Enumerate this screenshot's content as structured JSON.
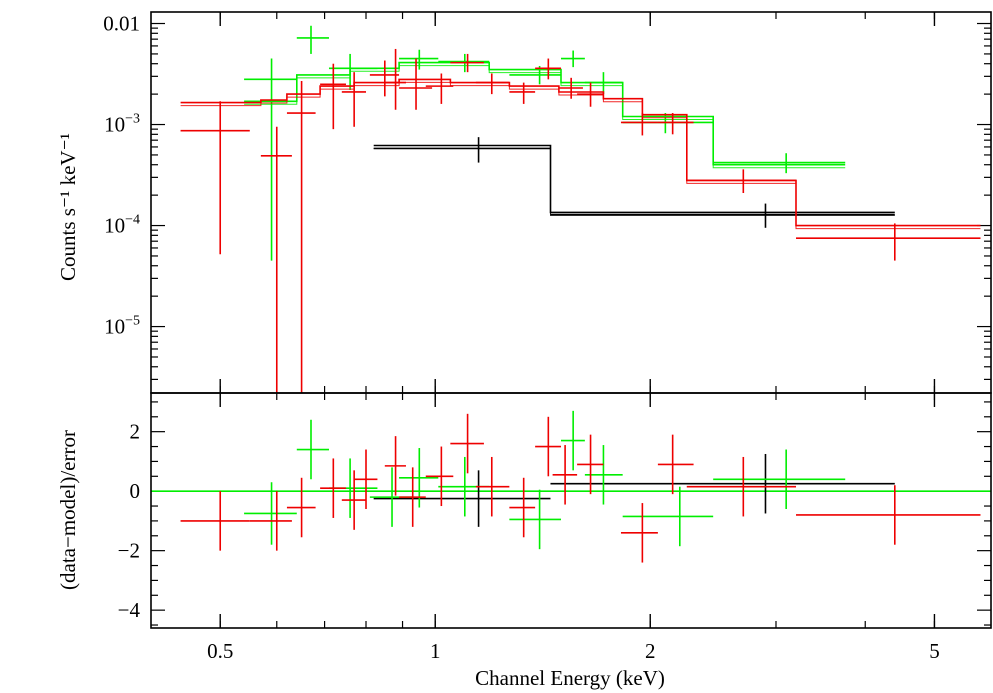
{
  "chart_data": [
    {
      "panel": "spectrum",
      "type": "scatter",
      "ylabel": "Counts s⁻¹ keV⁻¹",
      "xscale": "log",
      "yscale": "log",
      "xlim": [
        0.4,
        6.0
      ],
      "ylim": [
        2.2e-06,
        0.013
      ],
      "x_ticks": [
        {
          "value": 0.5,
          "label": "0.5"
        },
        {
          "value": 1,
          "label": "1"
        },
        {
          "value": 2,
          "label": "2"
        },
        {
          "value": 5,
          "label": "5"
        }
      ],
      "y_ticks": [
        {
          "value": 0.01,
          "label": "0.01",
          "sup": ""
        },
        {
          "value": 0.001,
          "label": "10",
          "sup": "−3"
        },
        {
          "value": 0.0001,
          "label": "10",
          "sup": "−4"
        },
        {
          "value": 1e-05,
          "label": "10",
          "sup": "−5"
        }
      ],
      "series": [
        {
          "name": "black",
          "color": "#000000",
          "points": [
            {
              "x": 1.15,
              "xlo": 0.82,
              "xhi": 1.45,
              "y": 0.00058,
              "ylo": 0.00042,
              "yhi": 0.00075
            },
            {
              "x": 2.9,
              "xlo": 1.45,
              "xhi": 4.4,
              "y": 0.000128,
              "ylo": 9.5e-05,
              "yhi": 0.000165
            }
          ],
          "model": [
            {
              "xlo": 0.82,
              "xhi": 1.45,
              "y": 0.00062
            },
            {
              "xlo": 1.45,
              "xhi": 4.4,
              "y": 0.000135
            }
          ]
        },
        {
          "name": "green",
          "color": "#00ee00",
          "points": [
            {
              "x": 0.59,
              "xlo": 0.54,
              "xhi": 0.64,
              "y": 0.0028,
              "ylo": 4.5e-05,
              "yhi": 0.0045
            },
            {
              "x": 0.67,
              "xlo": 0.64,
              "xhi": 0.71,
              "y": 0.0072,
              "ylo": 0.005,
              "yhi": 0.0095
            },
            {
              "x": 0.76,
              "xlo": 0.71,
              "xhi": 0.83,
              "y": 0.0036,
              "ylo": 0.0022,
              "yhi": 0.005
            },
            {
              "x": 0.95,
              "xlo": 0.89,
              "xhi": 1.01,
              "y": 0.0045,
              "ylo": 0.0035,
              "yhi": 0.0055
            },
            {
              "x": 1.1,
              "xlo": 1.01,
              "xhi": 1.19,
              "y": 0.0042,
              "ylo": 0.0033,
              "yhi": 0.005
            },
            {
              "x": 1.4,
              "xlo": 1.27,
              "xhi": 1.5,
              "y": 0.0031,
              "ylo": 0.0025,
              "yhi": 0.0038
            },
            {
              "x": 1.56,
              "xlo": 1.5,
              "xhi": 1.62,
              "y": 0.0045,
              "ylo": 0.0037,
              "yhi": 0.0054
            },
            {
              "x": 1.72,
              "xlo": 1.62,
              "xhi": 1.83,
              "y": 0.0026,
              "ylo": 0.002,
              "yhi": 0.0033
            },
            {
              "x": 2.1,
              "xlo": 1.83,
              "xhi": 2.45,
              "y": 0.00105,
              "ylo": 0.00082,
              "yhi": 0.0013
            },
            {
              "x": 3.1,
              "xlo": 2.45,
              "xhi": 3.75,
              "y": 0.00042,
              "ylo": 0.00033,
              "yhi": 0.00052
            }
          ],
          "model": [
            {
              "xlo": 0.54,
              "xhi": 0.64,
              "y": 0.0017
            },
            {
              "xlo": 0.64,
              "xhi": 0.76,
              "y": 0.0031
            },
            {
              "xlo": 0.76,
              "xhi": 0.89,
              "y": 0.0036
            },
            {
              "xlo": 0.89,
              "xhi": 1.19,
              "y": 0.0041
            },
            {
              "xlo": 1.19,
              "xhi": 1.5,
              "y": 0.0035
            },
            {
              "xlo": 1.5,
              "xhi": 1.83,
              "y": 0.0026
            },
            {
              "xlo": 1.83,
              "xhi": 2.45,
              "y": 0.0012
            },
            {
              "xlo": 2.45,
              "xhi": 3.75,
              "y": 0.0004
            }
          ]
        },
        {
          "name": "red",
          "color": "#ee0000",
          "points": [
            {
              "x": 0.5,
              "xlo": 0.44,
              "xhi": 0.55,
              "y": 0.00087,
              "ylo": 5.2e-05,
              "yhi": 0.0017
            },
            {
              "x": 0.6,
              "xlo": 0.57,
              "xhi": 0.63,
              "y": 0.00049,
              "ylo": 2.2e-06,
              "yhi": 0.00095
            },
            {
              "x": 0.65,
              "xlo": 0.62,
              "xhi": 0.68,
              "y": 0.0013,
              "ylo": 2.2e-06,
              "yhi": 0.0027
            },
            {
              "x": 0.72,
              "xlo": 0.69,
              "xhi": 0.75,
              "y": 0.0025,
              "ylo": 0.0009,
              "yhi": 0.004
            },
            {
              "x": 0.77,
              "xlo": 0.74,
              "xhi": 0.8,
              "y": 0.0021,
              "ylo": 0.00095,
              "yhi": 0.0033
            },
            {
              "x": 0.85,
              "xlo": 0.81,
              "xhi": 0.89,
              "y": 0.0031,
              "ylo": 0.0019,
              "yhi": 0.0043
            },
            {
              "x": 0.88,
              "xlo": 0.85,
              "xhi": 0.91,
              "y": 0.0026,
              "ylo": 0.0014,
              "yhi": 0.0056
            },
            {
              "x": 0.94,
              "xlo": 0.89,
              "xhi": 0.99,
              "y": 0.0023,
              "ylo": 0.0014,
              "yhi": 0.0045
            },
            {
              "x": 1.02,
              "xlo": 0.97,
              "xhi": 1.06,
              "y": 0.0024,
              "ylo": 0.0016,
              "yhi": 0.0032
            },
            {
              "x": 1.11,
              "xlo": 1.05,
              "xhi": 1.17,
              "y": 0.0041,
              "ylo": 0.0033,
              "yhi": 0.005
            },
            {
              "x": 1.2,
              "xlo": 1.14,
              "xhi": 1.27,
              "y": 0.0026,
              "ylo": 0.002,
              "yhi": 0.0032
            },
            {
              "x": 1.33,
              "xlo": 1.27,
              "xhi": 1.38,
              "y": 0.0021,
              "ylo": 0.0016,
              "yhi": 0.0026
            },
            {
              "x": 1.44,
              "xlo": 1.38,
              "xhi": 1.5,
              "y": 0.0036,
              "ylo": 0.0028,
              "yhi": 0.0045
            },
            {
              "x": 1.55,
              "xlo": 1.49,
              "xhi": 1.61,
              "y": 0.0023,
              "ylo": 0.0018,
              "yhi": 0.0029
            },
            {
              "x": 1.65,
              "xlo": 1.58,
              "xhi": 1.72,
              "y": 0.002,
              "ylo": 0.0015,
              "yhi": 0.0026
            },
            {
              "x": 1.95,
              "xlo": 1.82,
              "xhi": 2.05,
              "y": 0.00105,
              "ylo": 0.00078,
              "yhi": 0.0013
            },
            {
              "x": 2.15,
              "xlo": 2.05,
              "xhi": 2.3,
              "y": 0.00105,
              "ylo": 0.0008,
              "yhi": 0.0013
            },
            {
              "x": 2.7,
              "xlo": 2.25,
              "xhi": 3.2,
              "y": 0.00028,
              "ylo": 0.00021,
              "yhi": 0.00036
            },
            {
              "x": 4.4,
              "xlo": 3.2,
              "xhi": 5.8,
              "y": 7.5e-05,
              "ylo": 4.5e-05,
              "yhi": 0.000105
            }
          ],
          "model": [
            {
              "xlo": 0.44,
              "xhi": 0.57,
              "y": 0.00165
            },
            {
              "xlo": 0.57,
              "xhi": 0.62,
              "y": 0.00175
            },
            {
              "xlo": 0.62,
              "xhi": 0.69,
              "y": 0.002
            },
            {
              "xlo": 0.69,
              "xhi": 0.77,
              "y": 0.0024
            },
            {
              "xlo": 0.77,
              "xhi": 0.89,
              "y": 0.0026
            },
            {
              "xlo": 0.89,
              "xhi": 1.05,
              "y": 0.0028
            },
            {
              "xlo": 1.05,
              "xhi": 1.27,
              "y": 0.0026
            },
            {
              "xlo": 1.27,
              "xhi": 1.49,
              "y": 0.0024
            },
            {
              "xlo": 1.49,
              "xhi": 1.72,
              "y": 0.0021
            },
            {
              "xlo": 1.72,
              "xhi": 1.95,
              "y": 0.0018
            },
            {
              "xlo": 1.95,
              "xhi": 2.25,
              "y": 0.00125
            },
            {
              "xlo": 2.25,
              "xhi": 3.2,
              "y": 0.00028
            },
            {
              "xlo": 3.2,
              "xhi": 5.8,
              "y": 0.0001
            }
          ]
        }
      ]
    },
    {
      "panel": "residuals",
      "type": "scatter",
      "xlabel": "Channel Energy (keV)",
      "ylabel": "(data−model)/error",
      "xscale": "log",
      "xlim": [
        0.4,
        6.0
      ],
      "ylim": [
        -4.6,
        3.3
      ],
      "x_ticks": [
        {
          "value": 0.5,
          "label": "0.5"
        },
        {
          "value": 1,
          "label": "1"
        },
        {
          "value": 2,
          "label": "2"
        },
        {
          "value": 5,
          "label": "5"
        }
      ],
      "y_ticks": [
        {
          "value": 2,
          "label": "2"
        },
        {
          "value": 0,
          "label": "0"
        },
        {
          "value": -2,
          "label": "−2"
        },
        {
          "value": -4,
          "label": "−4"
        }
      ],
      "zero_line": true,
      "series": [
        {
          "name": "black",
          "color": "#000000",
          "points": [
            {
              "x": 1.15,
              "xlo": 0.82,
              "xhi": 1.45,
              "y": -0.25,
              "ylo": -1.2,
              "yhi": 0.7
            },
            {
              "x": 2.9,
              "xlo": 1.45,
              "xhi": 4.4,
              "y": 0.25,
              "ylo": -0.75,
              "yhi": 1.25
            }
          ]
        },
        {
          "name": "green",
          "color": "#00ee00",
          "points": [
            {
              "x": 0.59,
              "xlo": 0.54,
              "xhi": 0.64,
              "y": -0.75,
              "ylo": -1.8,
              "yhi": 0.3
            },
            {
              "x": 0.67,
              "xlo": 0.64,
              "xhi": 0.71,
              "y": 1.4,
              "ylo": 0.4,
              "yhi": 2.4
            },
            {
              "x": 0.76,
              "xlo": 0.71,
              "xhi": 0.83,
              "y": 0.1,
              "ylo": -0.9,
              "yhi": 1.1
            },
            {
              "x": 0.87,
              "xlo": 0.81,
              "xhi": 0.93,
              "y": -0.2,
              "ylo": -1.2,
              "yhi": 0.8
            },
            {
              "x": 0.95,
              "xlo": 0.89,
              "xhi": 1.01,
              "y": 0.45,
              "ylo": -0.55,
              "yhi": 1.45
            },
            {
              "x": 1.1,
              "xlo": 1.01,
              "xhi": 1.19,
              "y": 0.15,
              "ylo": -0.85,
              "yhi": 1.15
            },
            {
              "x": 1.4,
              "xlo": 1.27,
              "xhi": 1.5,
              "y": -0.95,
              "ylo": -1.95,
              "yhi": 0.05
            },
            {
              "x": 1.56,
              "xlo": 1.5,
              "xhi": 1.62,
              "y": 1.7,
              "ylo": 0.7,
              "yhi": 2.7
            },
            {
              "x": 1.72,
              "xlo": 1.62,
              "xhi": 1.83,
              "y": 0.55,
              "ylo": -0.45,
              "yhi": 1.55
            },
            {
              "x": 2.2,
              "xlo": 1.83,
              "xhi": 2.45,
              "y": -0.85,
              "ylo": -1.85,
              "yhi": 0.15
            },
            {
              "x": 3.1,
              "xlo": 2.45,
              "xhi": 3.75,
              "y": 0.4,
              "ylo": -0.6,
              "yhi": 1.4
            }
          ]
        },
        {
          "name": "red",
          "color": "#ee0000",
          "points": [
            {
              "x": 0.5,
              "xlo": 0.44,
              "xhi": 0.55,
              "y": -1.0,
              "ylo": -2.0,
              "yhi": 0.0
            },
            {
              "x": 0.6,
              "xlo": 0.55,
              "xhi": 0.63,
              "y": -1.0,
              "ylo": -2.0,
              "yhi": 0.0
            },
            {
              "x": 0.65,
              "xlo": 0.62,
              "xhi": 0.68,
              "y": -0.55,
              "ylo": -1.55,
              "yhi": 0.45
            },
            {
              "x": 0.72,
              "xlo": 0.69,
              "xhi": 0.75,
              "y": 0.1,
              "ylo": -0.9,
              "yhi": 1.1
            },
            {
              "x": 0.77,
              "xlo": 0.74,
              "xhi": 0.8,
              "y": -0.3,
              "ylo": -1.3,
              "yhi": 0.7
            },
            {
              "x": 0.8,
              "xlo": 0.77,
              "xhi": 0.83,
              "y": 0.4,
              "ylo": -0.6,
              "yhi": 1.4
            },
            {
              "x": 0.88,
              "xlo": 0.85,
              "xhi": 0.91,
              "y": 0.85,
              "ylo": -0.15,
              "yhi": 1.85
            },
            {
              "x": 0.93,
              "xlo": 0.89,
              "xhi": 0.97,
              "y": -0.2,
              "ylo": -1.2,
              "yhi": 0.8
            },
            {
              "x": 1.02,
              "xlo": 0.97,
              "xhi": 1.06,
              "y": 0.5,
              "ylo": -0.5,
              "yhi": 1.5
            },
            {
              "x": 1.11,
              "xlo": 1.05,
              "xhi": 1.17,
              "y": 1.6,
              "ylo": 0.6,
              "yhi": 2.6
            },
            {
              "x": 1.2,
              "xlo": 1.14,
              "xhi": 1.27,
              "y": 0.15,
              "ylo": -0.85,
              "yhi": 1.15
            },
            {
              "x": 1.33,
              "xlo": 1.27,
              "xhi": 1.38,
              "y": -0.55,
              "ylo": -1.55,
              "yhi": 0.45
            },
            {
              "x": 1.44,
              "xlo": 1.38,
              "xhi": 1.5,
              "y": 1.5,
              "ylo": 0.5,
              "yhi": 2.5
            },
            {
              "x": 1.52,
              "xlo": 1.46,
              "xhi": 1.58,
              "y": 0.55,
              "ylo": -0.45,
              "yhi": 1.55
            },
            {
              "x": 1.65,
              "xlo": 1.58,
              "xhi": 1.72,
              "y": 0.9,
              "ylo": -0.1,
              "yhi": 1.9
            },
            {
              "x": 1.95,
              "xlo": 1.82,
              "xhi": 2.05,
              "y": -1.4,
              "ylo": -2.4,
              "yhi": -0.4
            },
            {
              "x": 2.15,
              "xlo": 2.05,
              "xhi": 2.3,
              "y": 0.9,
              "ylo": -0.1,
              "yhi": 1.9
            },
            {
              "x": 2.7,
              "xlo": 2.25,
              "xhi": 3.2,
              "y": 0.15,
              "ylo": -0.85,
              "yhi": 1.15
            },
            {
              "x": 4.4,
              "xlo": 3.2,
              "xhi": 5.8,
              "y": -0.8,
              "ylo": -1.8,
              "yhi": 0.2
            }
          ]
        }
      ]
    }
  ]
}
